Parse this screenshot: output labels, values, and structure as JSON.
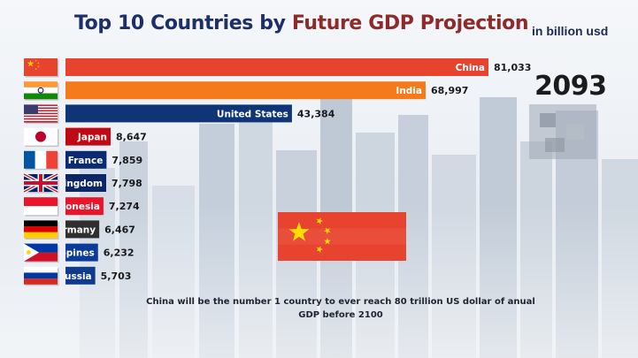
{
  "header": {
    "title_prefix": "Top 10 Countries by",
    "title_highlight": "Future GDP Projection",
    "unit": "in billion usd"
  },
  "year": "2093",
  "caption": "China will be the number 1 country to ever reach 80 trillion US dollar of anual GDP before 2100",
  "colors": {
    "title_dark": "#1c2f6b",
    "title_accent": "#8e2a2a",
    "china_flag_red": "#e8432f",
    "china_flag_star": "#ffde00"
  },
  "chart_data": {
    "type": "bar",
    "orientation": "horizontal",
    "title": "Top 10 Countries by Future GDP Projection",
    "unit": "in billion usd",
    "year": "2093",
    "categories": [
      "China",
      "India",
      "United States",
      "Japan",
      "France",
      "United Kingdom",
      "Indonesia",
      "Germany",
      "Philippines",
      "Russia"
    ],
    "bar_labels": [
      "China",
      "India",
      "United States",
      "Japan",
      "France",
      "Kingdom",
      "donesia",
      "ermany",
      "ppines",
      "Russia"
    ],
    "value_labels": [
      "81,033",
      "68,997",
      "43,384",
      "8,647",
      "7,859",
      "7,798",
      "7,274",
      "6,467",
      "6,232",
      "5,703"
    ],
    "values": [
      81033,
      68997,
      43384,
      8647,
      7859,
      7798,
      7274,
      6467,
      6232,
      5703
    ],
    "bar_colors": [
      "#e8432f",
      "#f47a1c",
      "#0f3576",
      "#bf0a15",
      "#0b2a74",
      "#0b2568",
      "#e8152b",
      "#2f2f2f",
      "#0a3b9a",
      "#103a8c"
    ],
    "flags": [
      "china-flag",
      "india-flag",
      "usa-flag",
      "japan-flag",
      "france-flag",
      "uk-flag",
      "indonesia-flag",
      "germany-flag",
      "philippines-flag",
      "russia-flag"
    ],
    "xlim": [
      0,
      81033
    ],
    "grid": false,
    "legend": "none"
  }
}
